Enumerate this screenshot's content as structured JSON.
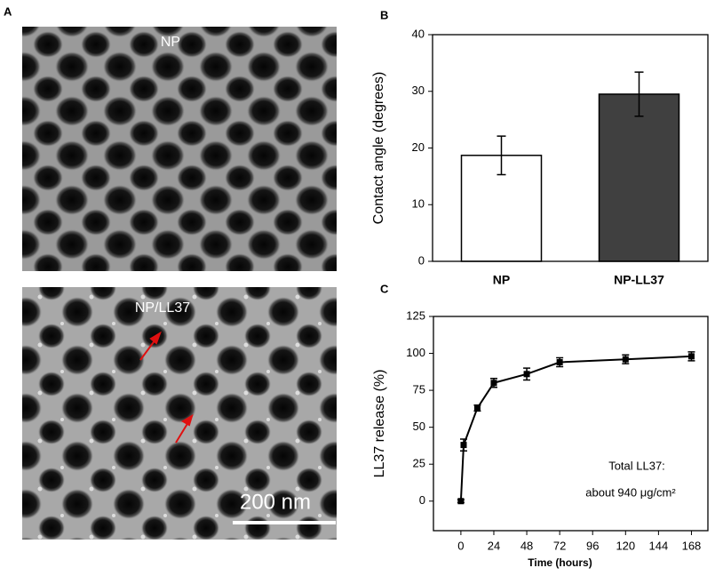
{
  "panel_labels": [
    "A",
    "B",
    "C"
  ],
  "images": [
    {
      "label": "NP"
    },
    {
      "label": "NP/LL37",
      "scale_bar": "200 nm"
    }
  ],
  "chart_data": [
    {
      "type": "bar",
      "ylabel": "Contact angle (degrees)",
      "categories": [
        "NP",
        "NP-LL37"
      ],
      "values": [
        18.7,
        29.5
      ],
      "errors": [
        3.4,
        3.9
      ],
      "colors": [
        "#ffffff",
        "#404040"
      ],
      "ylim": [
        0,
        40
      ],
      "yticks": [
        0,
        10,
        20,
        30,
        40
      ]
    },
    {
      "type": "line",
      "xlabel": "Time (hours)",
      "ylabel": "LL37 release (%)",
      "x": [
        0,
        2,
        12,
        24,
        48,
        72,
        120,
        168
      ],
      "values": [
        0,
        38,
        63,
        80,
        86,
        94,
        96,
        98
      ],
      "errors": [
        1,
        4,
        2,
        3,
        4,
        3,
        3,
        3
      ],
      "color": "#000000",
      "xlim": [
        -20,
        180
      ],
      "xticks": [
        0,
        24,
        48,
        72,
        96,
        120,
        144,
        168
      ],
      "ylim": [
        -20,
        125
      ],
      "yticks": [
        0,
        25,
        50,
        75,
        100,
        125
      ],
      "annotations": [
        "Total LL37:",
        "about 940  μg/cm²"
      ]
    }
  ]
}
